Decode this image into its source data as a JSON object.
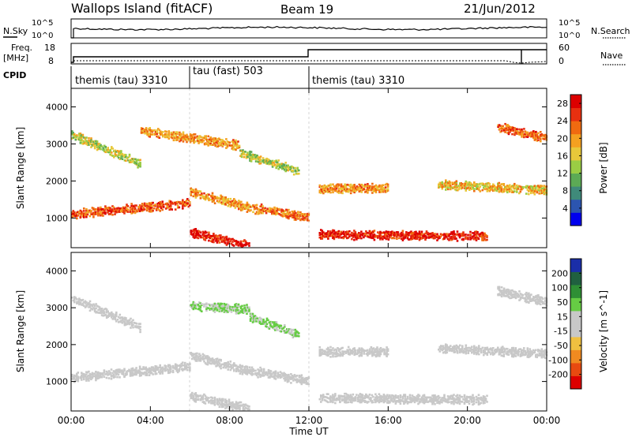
{
  "header": {
    "site": "Wallops Island (fitACF)",
    "beam": "Beam 19",
    "date": "21/Jun/2012"
  },
  "panels": {
    "noise": {
      "left_label": "N.Sky",
      "right_label": "N.Search",
      "left_ticks": [
        "10^5",
        "10^0"
      ],
      "right_ticks": [
        "10^5",
        "10^0"
      ]
    },
    "freq": {
      "left_label_1": "Freq.",
      "left_label_2": "[MHz]",
      "right_label": "Nave",
      "left_ticks": [
        "18",
        "8"
      ],
      "right_ticks": [
        "60",
        "0"
      ]
    },
    "cpid": {
      "label": "CPID",
      "modes": [
        {
          "name": "themis (tau) 3310"
        },
        {
          "name": "tau (fast) 503"
        },
        {
          "name": "themis (tau) 3310"
        }
      ]
    }
  },
  "colors": {
    "power_scale": [
      "#0000ee",
      "#2c55b0",
      "#3f8a7a",
      "#5caa55",
      "#9acc44",
      "#e8c83a",
      "#f4a020",
      "#f06a10",
      "#e83010",
      "#dd0000"
    ],
    "velocity_scale": [
      "#1a2ea8",
      "#206040",
      "#2f8f35",
      "#66cc44",
      "#c8c8c8",
      "#c8c8c8",
      "#f0c040",
      "#f08a20",
      "#e84a10",
      "#dd0000"
    ],
    "trace": "#000000"
  },
  "chart_data": [
    {
      "type": "heatmap",
      "title": "",
      "xlabel": "Time UT",
      "ylabel": "Slant Range [km]",
      "x_ticks": [
        "00:00",
        "04:00",
        "08:00",
        "12:00",
        "16:00",
        "20:00",
        "00:00"
      ],
      "y_ticks": [
        "1000",
        "2000",
        "3000",
        "4000"
      ],
      "ylim": [
        200,
        4500
      ],
      "colorbar": {
        "label": "Power [dB]",
        "ticks": [
          "4",
          "8",
          "12",
          "16",
          "20",
          "24",
          "28"
        ],
        "range": [
          0,
          30
        ]
      },
      "echo_bands": [
        {
          "t_start": 0.0,
          "t_end": 6.0,
          "range_start_km": 1150,
          "range_end_km": 1450,
          "power_db": 24
        },
        {
          "t_start": 6.0,
          "t_end": 9.5,
          "range_start_km": 1750,
          "range_end_km": 1250,
          "power_db": 20
        },
        {
          "t_start": 9.5,
          "t_end": 12.0,
          "range_start_km": 1300,
          "range_end_km": 1050,
          "power_db": 22
        },
        {
          "t_start": 12.5,
          "t_end": 21.0,
          "range_start_km": 600,
          "range_end_km": 550,
          "power_db": 27
        },
        {
          "t_start": 12.5,
          "t_end": 16.0,
          "range_start_km": 1850,
          "range_end_km": 1850,
          "power_db": 20
        },
        {
          "t_start": 18.5,
          "t_end": 24.0,
          "range_start_km": 1950,
          "range_end_km": 1800,
          "power_db": 18
        },
        {
          "t_start": 0.0,
          "t_end": 3.5,
          "range_start_km": 3300,
          "range_end_km": 2500,
          "power_db": 15
        },
        {
          "t_start": 3.5,
          "t_end": 8.5,
          "range_start_km": 3400,
          "range_end_km": 3000,
          "power_db": 20
        },
        {
          "t_start": 6.0,
          "t_end": 9.0,
          "range_start_km": 650,
          "range_end_km": 300,
          "power_db": 28
        },
        {
          "t_start": 8.5,
          "t_end": 11.5,
          "range_start_km": 2800,
          "range_end_km": 2300,
          "power_db": 14
        },
        {
          "t_start": 21.5,
          "t_end": 24.0,
          "range_start_km": 3500,
          "range_end_km": 3200,
          "power_db": 23
        }
      ]
    },
    {
      "type": "heatmap",
      "title": "",
      "xlabel": "Time UT",
      "ylabel": "Slant Range [km]",
      "x_ticks": [
        "00:00",
        "04:00",
        "08:00",
        "12:00",
        "16:00",
        "20:00",
        "00:00"
      ],
      "y_ticks": [
        "1000",
        "2000",
        "3000",
        "4000"
      ],
      "ylim": [
        200,
        4500
      ],
      "colorbar": {
        "label": "Velocity [m s^-1]",
        "ticks": [
          "200",
          "100",
          "50",
          "15",
          "-15",
          "-50",
          "-100",
          "-200"
        ],
        "range": [
          -250,
          250
        ]
      },
      "echo_bands": [
        {
          "t_start": 0.0,
          "t_end": 6.0,
          "range_start_km": 1150,
          "range_end_km": 1450,
          "velocity": 0
        },
        {
          "t_start": 6.0,
          "t_end": 9.5,
          "range_start_km": 1750,
          "range_end_km": 1250,
          "velocity": 0
        },
        {
          "t_start": 9.5,
          "t_end": 12.0,
          "range_start_km": 1300,
          "range_end_km": 1050,
          "velocity": 0
        },
        {
          "t_start": 12.5,
          "t_end": 21.0,
          "range_start_km": 600,
          "range_end_km": 550,
          "velocity": 0
        },
        {
          "t_start": 12.5,
          "t_end": 16.0,
          "range_start_km": 1850,
          "range_end_km": 1850,
          "velocity": 0
        },
        {
          "t_start": 18.5,
          "t_end": 24.0,
          "range_start_km": 1950,
          "range_end_km": 1800,
          "velocity": 0
        },
        {
          "t_start": 0.0,
          "t_end": 3.5,
          "range_start_km": 3300,
          "range_end_km": 2500,
          "velocity": 0
        },
        {
          "t_start": 6.0,
          "t_end": 9.0,
          "range_start_km": 3100,
          "range_end_km": 3000,
          "velocity": 60
        },
        {
          "t_start": 9.0,
          "t_end": 11.5,
          "range_start_km": 2800,
          "range_end_km": 2300,
          "velocity": 60
        },
        {
          "t_start": 6.0,
          "t_end": 9.0,
          "range_start_km": 650,
          "range_end_km": 300,
          "velocity": 0
        },
        {
          "t_start": 21.5,
          "t_end": 24.0,
          "range_start_km": 3500,
          "range_end_km": 3200,
          "velocity": 0
        }
      ]
    }
  ]
}
